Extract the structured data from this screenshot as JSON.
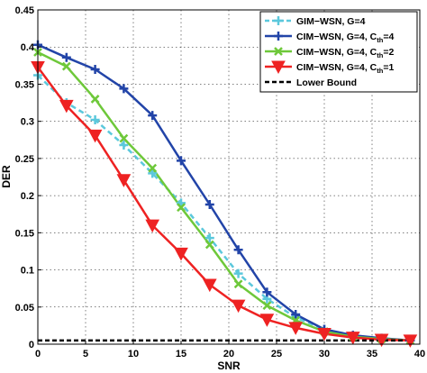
{
  "chart_data": {
    "type": "line",
    "xlabel": "SNR",
    "ylabel": "DER",
    "xlim": [
      0,
      40
    ],
    "ylim": [
      0,
      0.45
    ],
    "xticks": [
      "0",
      "5",
      "10",
      "15",
      "20",
      "25",
      "30",
      "35",
      "40"
    ],
    "yticks": [
      "0",
      "0.05",
      "0.1",
      "0.15",
      "0.2",
      "0.25",
      "0.3",
      "0.35",
      "0.4",
      "0.45"
    ],
    "grid": true,
    "legend_position": "top-right",
    "x": [
      0,
      3,
      6,
      9,
      12,
      15,
      18,
      21,
      24,
      27,
      30,
      33,
      36,
      39
    ],
    "series": [
      {
        "name": "GIM−WSN, G=4",
        "legend": {
          "main": "GIM−WSN, G=4",
          "sub": "",
          "tail": ""
        },
        "color": "#5bc8dc",
        "dash": "dashed",
        "marker": "plus",
        "values": [
          0.362,
          0.325,
          0.302,
          0.268,
          0.23,
          0.19,
          0.143,
          0.095,
          0.061,
          0.036,
          0.02,
          0.011,
          0.007,
          0.005
        ]
      },
      {
        "name": "CIM−WSN, G=4, Cth=4",
        "legend": {
          "main": "CIM−WSN, G=4, C",
          "sub": "th",
          "tail": "=4"
        },
        "color": "#2244a8",
        "dash": "solid",
        "marker": "plus",
        "values": [
          0.403,
          0.386,
          0.37,
          0.344,
          0.308,
          0.247,
          0.188,
          0.127,
          0.07,
          0.04,
          0.02,
          0.012,
          0.008,
          0.005
        ]
      },
      {
        "name": "CIM−WSN, G=4, Cth=2",
        "legend": {
          "main": "CIM−WSN, G=4, C",
          "sub": "th",
          "tail": "=2"
        },
        "color": "#6ec83a",
        "dash": "solid",
        "marker": "x",
        "values": [
          0.393,
          0.374,
          0.33,
          0.277,
          0.237,
          0.184,
          0.134,
          0.081,
          0.052,
          0.032,
          0.017,
          0.01,
          0.007,
          0.005
        ]
      },
      {
        "name": "CIM−WSN, G=4, Cth=1",
        "legend": {
          "main": "CIM−WSN, G=4, C",
          "sub": "th",
          "tail": "=1"
        },
        "color": "#ee2222",
        "dash": "solid",
        "marker": "triangle-down",
        "values": [
          0.373,
          0.321,
          0.281,
          0.221,
          0.16,
          0.122,
          0.08,
          0.052,
          0.033,
          0.022,
          0.014,
          0.009,
          0.006,
          0.005
        ]
      },
      {
        "name": "Lower Bound",
        "legend": {
          "main": "Lower Bound",
          "sub": "",
          "tail": ""
        },
        "color": "#000000",
        "dash": "dashed",
        "marker": "none",
        "values": [
          0.005,
          0.005,
          0.005,
          0.005,
          0.005,
          0.005,
          0.005,
          0.005,
          0.005,
          0.005,
          0.005,
          0.005,
          0.005,
          0.005
        ]
      }
    ]
  }
}
